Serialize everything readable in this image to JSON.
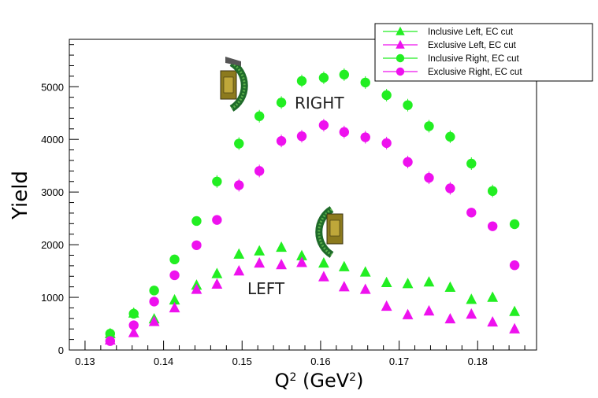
{
  "chart_data": {
    "type": "scatter",
    "xlabel": "Q² (GeV²)",
    "ylabel": "Yield",
    "xlim": [
      0.128,
      0.1875
    ],
    "ylim": [
      0,
      5900
    ],
    "x_ticks": [
      "0.13",
      "0.14",
      "0.15",
      "0.16",
      "0.17",
      "0.18"
    ],
    "y_ticks": [
      "0",
      "1000",
      "2000",
      "3000",
      "4000",
      "5000"
    ],
    "legend": {
      "position": "top-right"
    },
    "annotations": {
      "right": "RIGHT",
      "left": "LEFT"
    },
    "series": [
      {
        "name": "Inclusive Left, EC cut",
        "marker": "triangle",
        "color": "#22ee22",
        "points": [
          [
            0.1332,
            310
          ],
          [
            0.1362,
            700
          ],
          [
            0.1388,
            590
          ],
          [
            0.1414,
            950
          ],
          [
            0.1442,
            1230
          ],
          [
            0.1468,
            1450
          ],
          [
            0.1496,
            1820
          ],
          [
            0.1522,
            1880
          ],
          [
            0.155,
            1950
          ],
          [
            0.1576,
            1790
          ],
          [
            0.1604,
            1650
          ],
          [
            0.163,
            1580
          ],
          [
            0.1657,
            1480
          ],
          [
            0.1684,
            1280
          ],
          [
            0.1711,
            1260
          ],
          [
            0.1738,
            1290
          ],
          [
            0.1765,
            1190
          ],
          [
            0.1792,
            960
          ],
          [
            0.1819,
            1000
          ],
          [
            0.1847,
            730
          ]
        ]
      },
      {
        "name": "Exclusive Left, EC cut",
        "marker": "triangle",
        "color": "#ee11ee",
        "points": [
          [
            0.1332,
            190
          ],
          [
            0.1362,
            330
          ],
          [
            0.1388,
            540
          ],
          [
            0.1414,
            800
          ],
          [
            0.1442,
            1150
          ],
          [
            0.1468,
            1250
          ],
          [
            0.1496,
            1500
          ],
          [
            0.1522,
            1650
          ],
          [
            0.155,
            1620
          ],
          [
            0.1576,
            1660
          ],
          [
            0.1604,
            1390
          ],
          [
            0.163,
            1200
          ],
          [
            0.1657,
            1150
          ],
          [
            0.1684,
            830
          ],
          [
            0.1711,
            670
          ],
          [
            0.1738,
            740
          ],
          [
            0.1765,
            590
          ],
          [
            0.1792,
            680
          ],
          [
            0.1819,
            530
          ],
          [
            0.1847,
            400
          ]
        ]
      },
      {
        "name": "Inclusive Right, EC cut",
        "marker": "circle",
        "color": "#22ee22",
        "points": [
          [
            0.1332,
            310
          ],
          [
            0.1362,
            690
          ],
          [
            0.1388,
            1130
          ],
          [
            0.1414,
            1720
          ],
          [
            0.1442,
            2450
          ],
          [
            0.1468,
            3200
          ],
          [
            0.1496,
            3920
          ],
          [
            0.1522,
            4440
          ],
          [
            0.155,
            4700
          ],
          [
            0.1576,
            5110
          ],
          [
            0.1604,
            5170
          ],
          [
            0.163,
            5230
          ],
          [
            0.1657,
            5080
          ],
          [
            0.1684,
            4840
          ],
          [
            0.1711,
            4650
          ],
          [
            0.1738,
            4250
          ],
          [
            0.1765,
            4050
          ],
          [
            0.1792,
            3540
          ],
          [
            0.1819,
            3020
          ],
          [
            0.1847,
            2390
          ]
        ]
      },
      {
        "name": "Exclusive Right, EC cut",
        "marker": "circle",
        "color": "#ee11ee",
        "points": [
          [
            0.1332,
            170
          ],
          [
            0.1362,
            470
          ],
          [
            0.1388,
            920
          ],
          [
            0.1414,
            1420
          ],
          [
            0.1442,
            1990
          ],
          [
            0.1468,
            2470
          ],
          [
            0.1496,
            3130
          ],
          [
            0.1522,
            3400
          ],
          [
            0.155,
            3970
          ],
          [
            0.1576,
            4060
          ],
          [
            0.1604,
            4270
          ],
          [
            0.163,
            4140
          ],
          [
            0.1657,
            4040
          ],
          [
            0.1684,
            3930
          ],
          [
            0.1711,
            3570
          ],
          [
            0.1738,
            3270
          ],
          [
            0.1765,
            3070
          ],
          [
            0.1792,
            2610
          ],
          [
            0.1819,
            2350
          ],
          [
            0.1847,
            1610
          ]
        ]
      }
    ]
  }
}
